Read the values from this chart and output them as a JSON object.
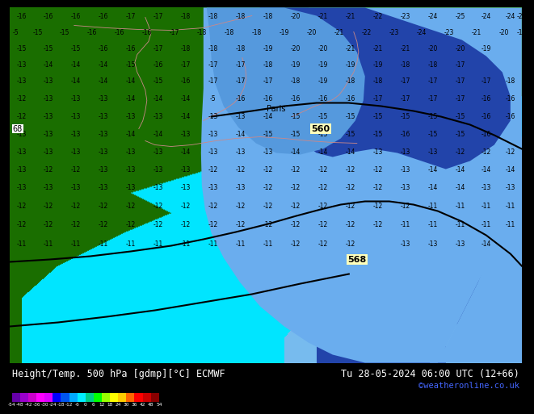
{
  "title_left": "Height/Temp. 500 hPa [gdmp][°C] ECMWF",
  "title_right": "Tu 28-05-2024 06:00 UTC (12+66)",
  "credit": "©weatheronline.co.uk",
  "colorbar_values": [
    -54,
    -48,
    -42,
    -36,
    -30,
    -24,
    -18,
    -12,
    -6,
    0,
    6,
    12,
    18,
    24,
    30,
    36,
    42,
    48,
    54
  ],
  "bg_cyan": "#00e5ff",
  "bg_light_cyan": "#40cfff",
  "bg_mid_blue": "#6aadee",
  "bg_dark_blue": "#3366cc",
  "bg_deep_blue": "#2244aa",
  "bg_green_dark": "#1a6e00",
  "bg_green_mid": "#2a8c00",
  "bg_green_light": "#55bb00",
  "info_bg": "#000000",
  "text_white": "#ffffff",
  "text_blue_link": "#4466ff",
  "label_560_bg": "#ffffaa",
  "label_568_bg": "#ffffaa"
}
